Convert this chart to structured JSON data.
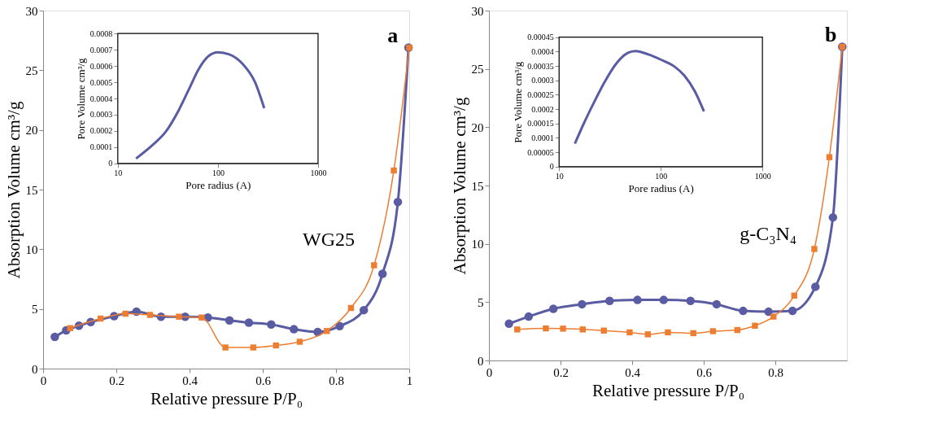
{
  "chart_data": [
    {
      "type": "line",
      "xlabel": "Relative  pressure P/P₀",
      "ylabel": "Absorption Volume cm³/g",
      "xlim": [
        0,
        1
      ],
      "ylim": [
        0,
        30
      ],
      "xticks": [
        0,
        0.2,
        0.4,
        0.6,
        0.8,
        1
      ],
      "yticks": [
        0,
        5,
        10,
        15,
        20,
        25,
        30
      ],
      "line_style": "solid",
      "annotations": [
        "a",
        "WG25"
      ],
      "series": [
        {
          "color": "#5a5ca3",
          "marker": "circle",
          "x": [
            0.032,
            0.063,
            0.098,
            0.13,
            0.194,
            0.255,
            0.322,
            0.388,
            0.45,
            0.509,
            0.562,
            0.623,
            0.685,
            0.75,
            0.81,
            0.876,
            0.927,
            0.969,
            0.998
          ],
          "values": [
            2.66,
            3.2,
            3.6,
            3.9,
            4.4,
            4.77,
            4.35,
            4.35,
            4.28,
            4.04,
            3.85,
            3.7,
            3.3,
            3.07,
            3.56,
            4.9,
            7.94,
            13.96,
            26.9
          ]
        },
        {
          "color": "#ed7d31",
          "marker": "square",
          "x": [
            0.074,
            0.157,
            0.225,
            0.292,
            0.371,
            0.433,
            0.498,
            0.574,
            0.636,
            0.701,
            0.775,
            0.841,
            0.904,
            0.958,
            1.0
          ],
          "values": [
            3.39,
            4.19,
            4.6,
            4.5,
            4.35,
            4.28,
            1.77,
            1.77,
            1.94,
            2.25,
            3.15,
            5.08,
            8.66,
            16.6,
            26.9
          ]
        }
      ]
    },
    {
      "type": "line",
      "xlabel": "Pore radius (A)",
      "ylabel": "Pore Volume  cm³/g",
      "log": "x",
      "xlim": [
        10,
        1000
      ],
      "ylim": [
        0,
        0.0008
      ],
      "xticks": [
        10,
        100,
        1000
      ],
      "yticks": [
        0,
        0.0001,
        0.0002,
        0.0003,
        0.0004,
        0.0005,
        0.0006,
        0.0007,
        0.0008
      ],
      "line_style": "solid",
      "marker": "none",
      "series": [
        {
          "color": "#5a5ca3",
          "x": [
            15.2,
            22.4,
            30.1,
            40.3,
            51,
            64.4,
            81.4,
            100,
            130,
            175,
            234,
            290
          ],
          "values": [
            3e-05,
            0.000115,
            0.000195,
            0.000324,
            0.000453,
            0.000582,
            0.000663,
            0.000684,
            0.000671,
            0.000615,
            0.000502,
            0.00034
          ]
        }
      ]
    },
    {
      "type": "line",
      "xlabel": "Relative  pressure P/P₀",
      "ylabel": "Absorption Volume cm³/g",
      "xlim": [
        0,
        1
      ],
      "ylim": [
        0,
        30
      ],
      "xticks": [
        0,
        0.2,
        0.4,
        0.6,
        0.8
      ],
      "yticks": [
        0,
        5,
        10,
        15,
        20,
        25,
        30
      ],
      "line_style": "solid",
      "annotations": [
        "b",
        "g-C₃N₄"
      ],
      "series": [
        {
          "color": "#5a5ca3",
          "marker": "circle",
          "x": [
            0.056,
            0.111,
            0.18,
            0.26,
            0.337,
            0.415,
            0.488,
            0.563,
            0.636,
            0.71,
            0.781,
            0.848,
            0.912,
            0.961,
            0.987
          ],
          "values": [
            3.15,
            3.76,
            4.43,
            4.82,
            5.11,
            5.19,
            5.19,
            5.11,
            4.82,
            4.25,
            4.18,
            4.25,
            6.32,
            12.27,
            26.9
          ]
        },
        {
          "color": "#ed7d31",
          "marker": "square",
          "x": [
            0.079,
            0.159,
            0.207,
            0.262,
            0.321,
            0.393,
            0.444,
            0.5,
            0.571,
            0.626,
            0.694,
            0.743,
            0.795,
            0.853,
            0.909,
            0.951,
            0.987
          ],
          "values": [
            2.66,
            2.75,
            2.73,
            2.66,
            2.56,
            2.41,
            2.24,
            2.41,
            2.34,
            2.51,
            2.61,
            2.98,
            3.76,
            5.56,
            9.56,
            17.43,
            26.9
          ]
        }
      ]
    },
    {
      "type": "line",
      "xlabel": "Pore radius (A)",
      "ylabel": "Pore Volume  cm³/g",
      "log": "x",
      "xlim": [
        10,
        1000
      ],
      "ylim": [
        0,
        0.00045
      ],
      "xticks": [
        10,
        100,
        1000
      ],
      "yticks": [
        0,
        {
          "value": 5e-05,
          "label": "0.00005"
        },
        0.0001,
        0.00015,
        0.0002,
        0.00025,
        0.0003,
        0.00035,
        0.0004,
        0.00045
      ],
      "line_style": "solid",
      "marker": "none",
      "series": [
        {
          "color": "#5a5ca3",
          "x": [
            14.3,
            17.5,
            22.1,
            27.9,
            37.4,
            47.2,
            56.3,
            75.5,
            100,
            135,
            171,
            217,
            266
          ],
          "values": [
            8e-05,
            0.00015,
            0.000224,
            0.000293,
            0.000363,
            0.000395,
            0.000402,
            0.00039,
            0.000372,
            0.000349,
            0.000316,
            0.000261,
            0.000192
          ]
        }
      ]
    }
  ]
}
